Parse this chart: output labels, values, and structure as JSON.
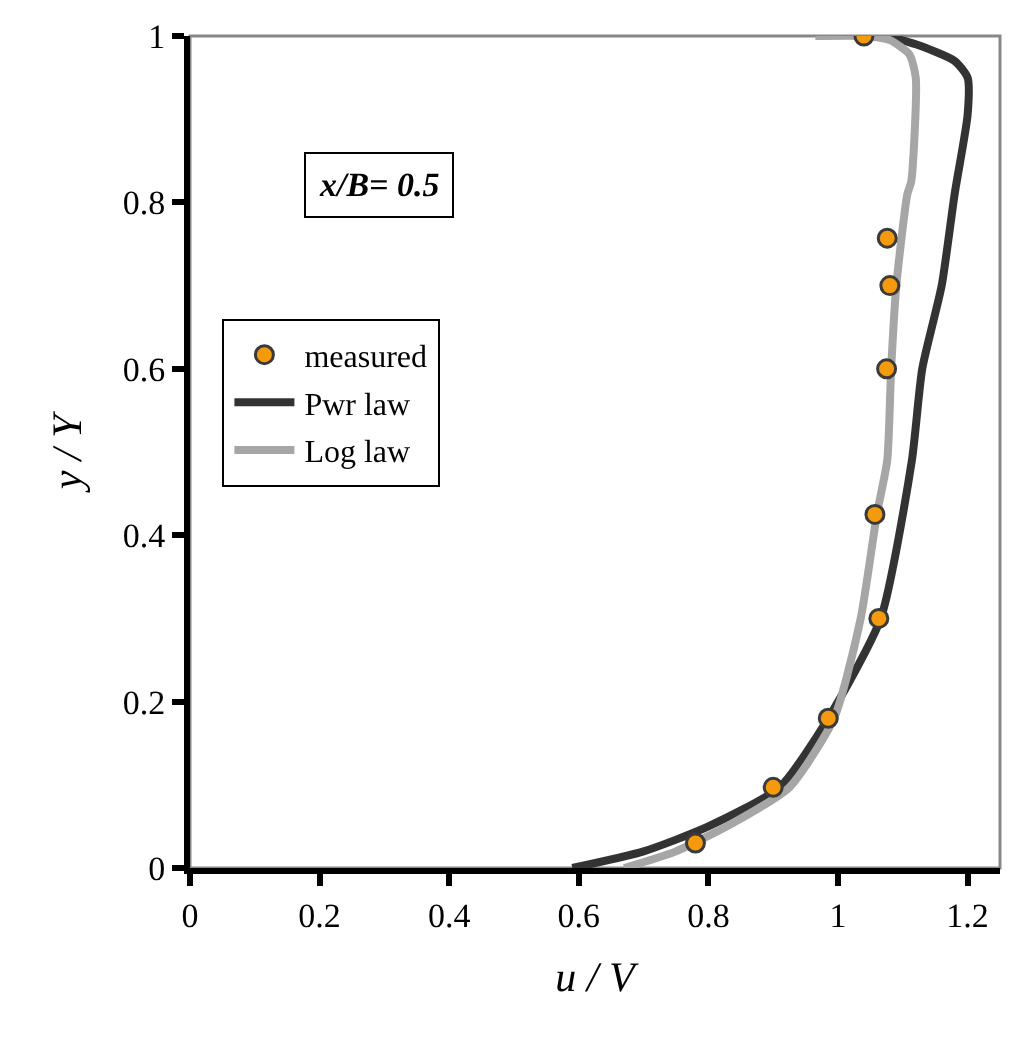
{
  "chart_data": {
    "type": "line",
    "xlabel": "u / V",
    "ylabel": "y / Y",
    "xlim": [
      0,
      1.25
    ],
    "ylim": [
      0,
      1
    ],
    "xticks": [
      0,
      0.2,
      0.4,
      0.6,
      0.8,
      1,
      1.2
    ],
    "yticks": [
      0,
      0.2,
      0.4,
      0.6,
      0.8,
      1
    ],
    "grid": false,
    "legend": "left",
    "annotations": [
      "x/B= 0.5"
    ],
    "series": [
      {
        "name": "measured",
        "type": "scatter",
        "marker": "circle",
        "color": "#f59a0c",
        "x": [
          1.04,
          1.076,
          1.08,
          1.075,
          1.057,
          1.063,
          0.985,
          0.9,
          0.78
        ],
        "values": [
          1.0,
          0.757,
          0.7,
          0.6,
          0.425,
          0.3,
          0.18,
          0.097,
          0.03
        ]
      },
      {
        "name": "Pwr law",
        "color": "#333333",
        "x": [
          0.59,
          0.7,
          0.8,
          0.91,
          0.985,
          1.066,
          1.114,
          1.13,
          1.16,
          1.18,
          1.2,
          1.2,
          1.18,
          1.12,
          1.07,
          1.04
        ],
        "values": [
          0,
          0.02,
          0.05,
          0.097,
          0.18,
          0.3,
          0.49,
          0.6,
          0.7,
          0.81,
          0.905,
          0.95,
          0.97,
          0.99,
          1.0,
          1.0
        ]
      },
      {
        "name": "Log law",
        "color": "#a6a6a6",
        "x": [
          0.67,
          0.75,
          0.84,
          0.925,
          0.994,
          1.035,
          1.06,
          1.076,
          1.082,
          1.09,
          1.107,
          1.113,
          1.12,
          1.11,
          1.08,
          1.04,
          0.965
        ],
        "values": [
          0,
          0.02,
          0.055,
          0.097,
          0.18,
          0.3,
          0.425,
          0.49,
          0.6,
          0.7,
          0.81,
          0.825,
          0.95,
          0.978,
          0.995,
          1.0,
          1.0
        ]
      }
    ]
  }
}
